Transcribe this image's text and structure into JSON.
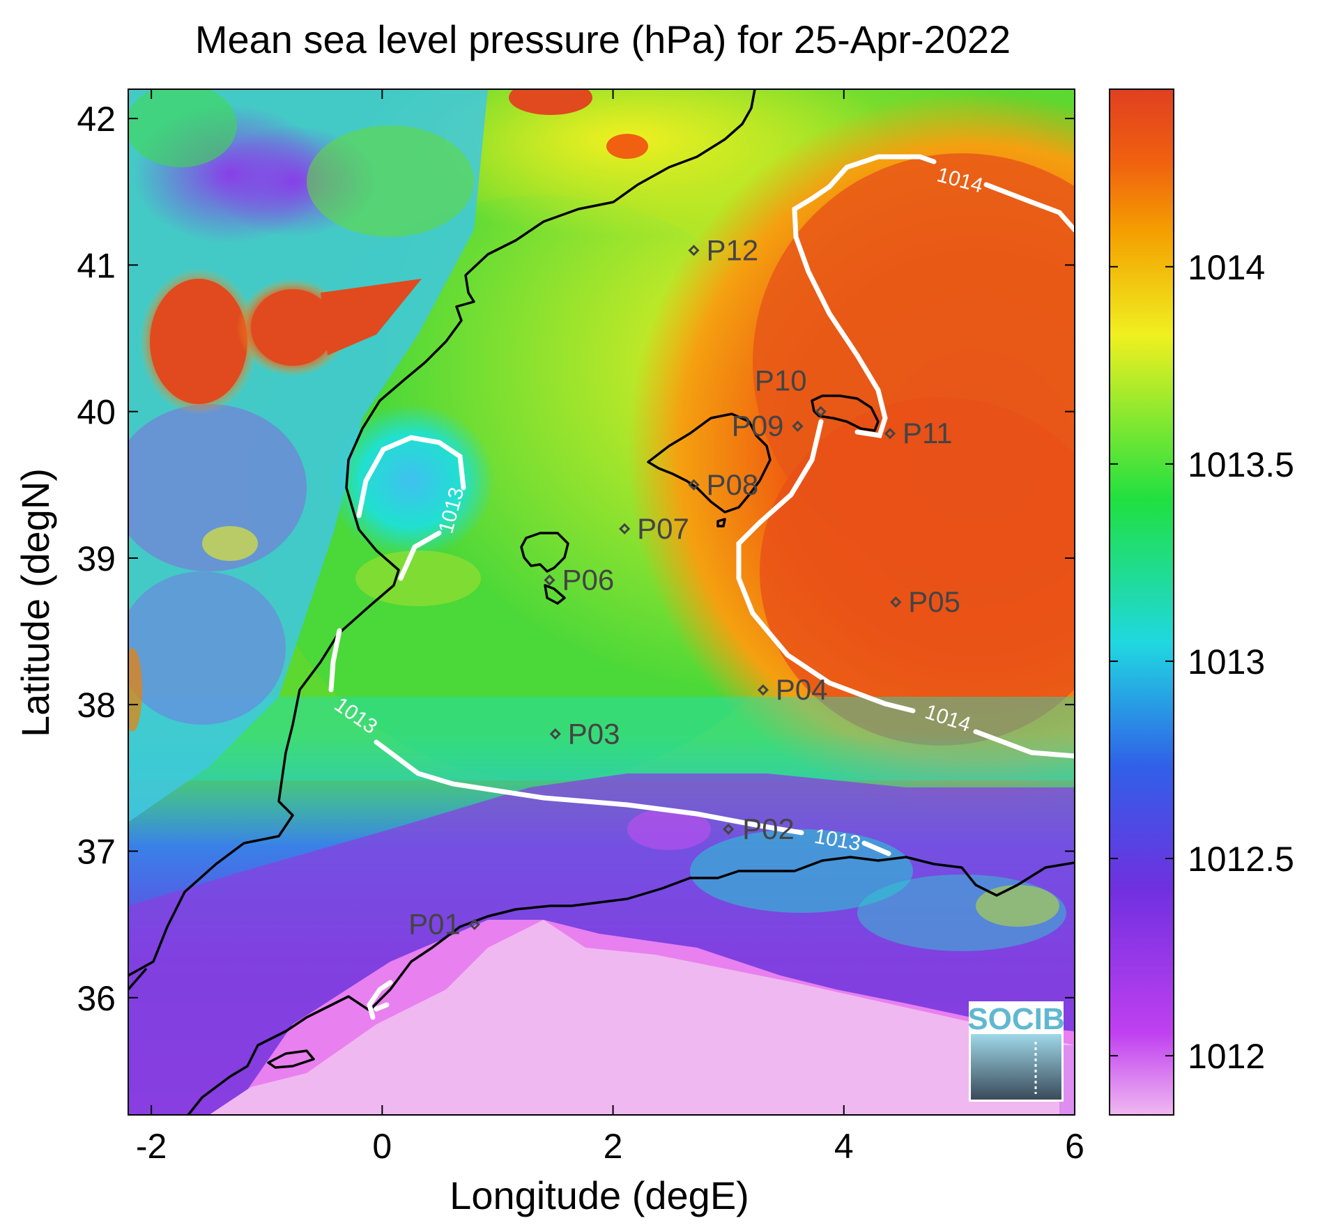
{
  "chart_data": {
    "type": "heatmap",
    "title": "Mean sea level pressure (hPa) for 25-Apr-2022",
    "xlabel": "Longitude (degE)",
    "ylabel": "Latitude (degN)",
    "xlim": [
      -2.2,
      6.0
    ],
    "ylim": [
      35.2,
      42.2
    ],
    "x_ticks": [
      -2,
      0,
      2,
      4,
      6
    ],
    "y_ticks": [
      36,
      37,
      38,
      39,
      40,
      41,
      42
    ],
    "colorbar": {
      "range": [
        1011.85,
        1014.45
      ],
      "ticks": [
        1012,
        1012.5,
        1013,
        1013.5,
        1014
      ],
      "tick_labels": [
        "1012",
        "1012.5",
        "1013",
        "1013.5",
        "1014"
      ],
      "colors": [
        "#f0b8f0",
        "#c040f0",
        "#7030e0",
        "#3060e8",
        "#20d8e0",
        "#20e040",
        "#f0f020",
        "#f08000",
        "#e04020"
      ]
    },
    "contours": [
      {
        "level": 1013,
        "label": "1013",
        "label_positions": [
          [
            0.8,
            39.4
          ],
          [
            -0.2,
            37.85
          ],
          [
            3.6,
            37.0
          ]
        ]
      },
      {
        "level": 1014,
        "label": "1014",
        "label_positions": [
          [
            5.05,
            41.55
          ],
          [
            4.4,
            37.95
          ]
        ]
      }
    ],
    "points": [
      {
        "name": "P01",
        "lon": 0.8,
        "lat": 36.5
      },
      {
        "name": "P02",
        "lon": 3.0,
        "lat": 37.15
      },
      {
        "name": "P03",
        "lon": 1.5,
        "lat": 37.8
      },
      {
        "name": "P04",
        "lon": 3.3,
        "lat": 38.1
      },
      {
        "name": "P05",
        "lon": 4.45,
        "lat": 38.7
      },
      {
        "name": "P06",
        "lon": 1.45,
        "lat": 38.85
      },
      {
        "name": "P07",
        "lon": 2.1,
        "lat": 39.2
      },
      {
        "name": "P08",
        "lon": 2.7,
        "lat": 39.5
      },
      {
        "name": "P09",
        "lon": 3.6,
        "lat": 39.9
      },
      {
        "name": "P10",
        "lon": 3.8,
        "lat": 40.0
      },
      {
        "name": "P11",
        "lon": 4.4,
        "lat": 39.85
      },
      {
        "name": "P12",
        "lon": 2.7,
        "lat": 41.1
      }
    ],
    "grid": false
  },
  "logo": {
    "text": "SOCIB"
  }
}
